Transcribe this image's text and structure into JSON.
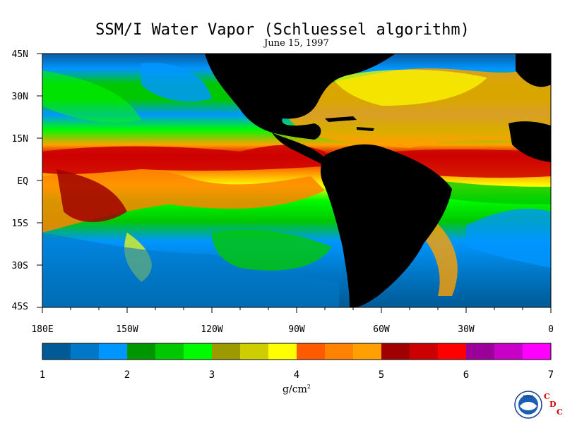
{
  "title": "SSM/I Water Vapor (Schluessel algorithm)",
  "date": "June 15, 1997",
  "lat_labels": [
    "45N",
    "30N",
    "15N",
    "EQ",
    "15S",
    "30S",
    "45S"
  ],
  "lon_labels": [
    "180E",
    "150W",
    "120W",
    "90W",
    "60W",
    "30W",
    "0"
  ],
  "colorbar": {
    "tick_labels": [
      "1",
      "2",
      "3",
      "4",
      "5",
      "6",
      "7"
    ],
    "units": "g/cm",
    "units_exponent": "2",
    "colors": [
      "#005a96",
      "#0078c8",
      "#0096ff",
      "#009600",
      "#00c800",
      "#00fa00",
      "#9b9b00",
      "#cdcd00",
      "#ffff00",
      "#ff5a00",
      "#ff8200",
      "#ffa000",
      "#a00000",
      "#cd0000",
      "#ff0000",
      "#9b009b",
      "#c800c8",
      "#ff00ff"
    ]
  },
  "logo": {
    "agency": "NOAA",
    "letters": [
      "C",
      "D",
      "C"
    ]
  },
  "icons": {
    "noaa": "noaa-logo-icon"
  }
}
